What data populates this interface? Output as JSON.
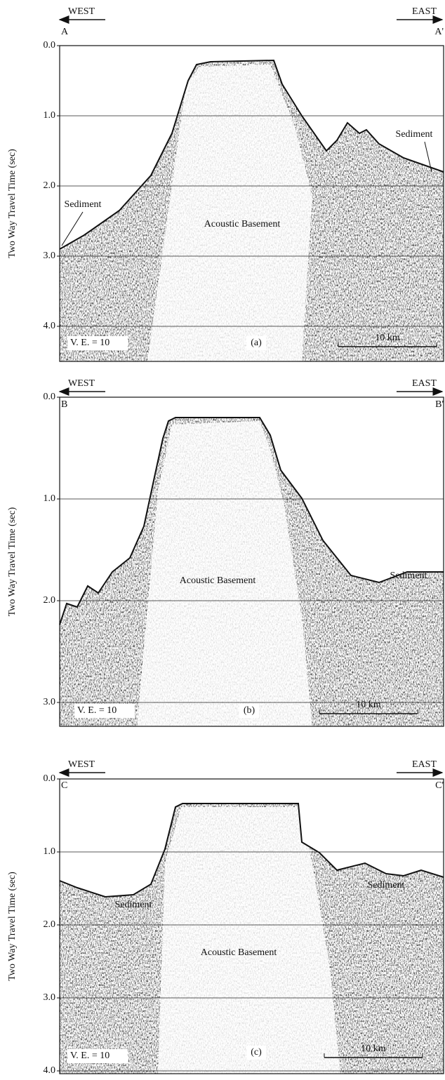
{
  "figure": {
    "panels": [
      {
        "west": "WEST",
        "east": "EAST",
        "left_point": "A",
        "right_point": "A'",
        "y_axis_label": "Two Way Travel Time (sec)",
        "ticks": [
          "0.0",
          "1.0",
          "2.0",
          "3.0",
          "4.0"
        ],
        "annotations": {
          "basement": "Acoustic Basement",
          "sediment_left": "Sediment",
          "sediment_right": "Sediment",
          "ve": "V. E. = 10",
          "panel_label": "(a)",
          "scale": "10 km"
        }
      },
      {
        "west": "WEST",
        "east": "EAST",
        "left_point": "B",
        "right_point": "B'",
        "y_axis_label": "Two Way Travel Time (sec)",
        "ticks": [
          "0.0",
          "1.0",
          "2.0",
          "3.0"
        ],
        "annotations": {
          "basement": "Acoustic Basement",
          "sediment_right": "Sediment",
          "ve": "V. E. = 10",
          "panel_label": "(b)",
          "scale": "10 km"
        }
      },
      {
        "west": "WEST",
        "east": "EAST",
        "left_point": "C",
        "right_point": "C'",
        "y_axis_label": "Two Way Travel Time (sec)",
        "ticks": [
          "0.0",
          "1.0",
          "2.0",
          "3.0",
          "4.0"
        ],
        "annotations": {
          "basement": "Acoustic Basement",
          "sediment_left": "Sediment",
          "sediment_right": "Sediment",
          "ve": "V. E. = 10",
          "panel_label": "(c)",
          "scale": "10 km"
        }
      }
    ]
  }
}
